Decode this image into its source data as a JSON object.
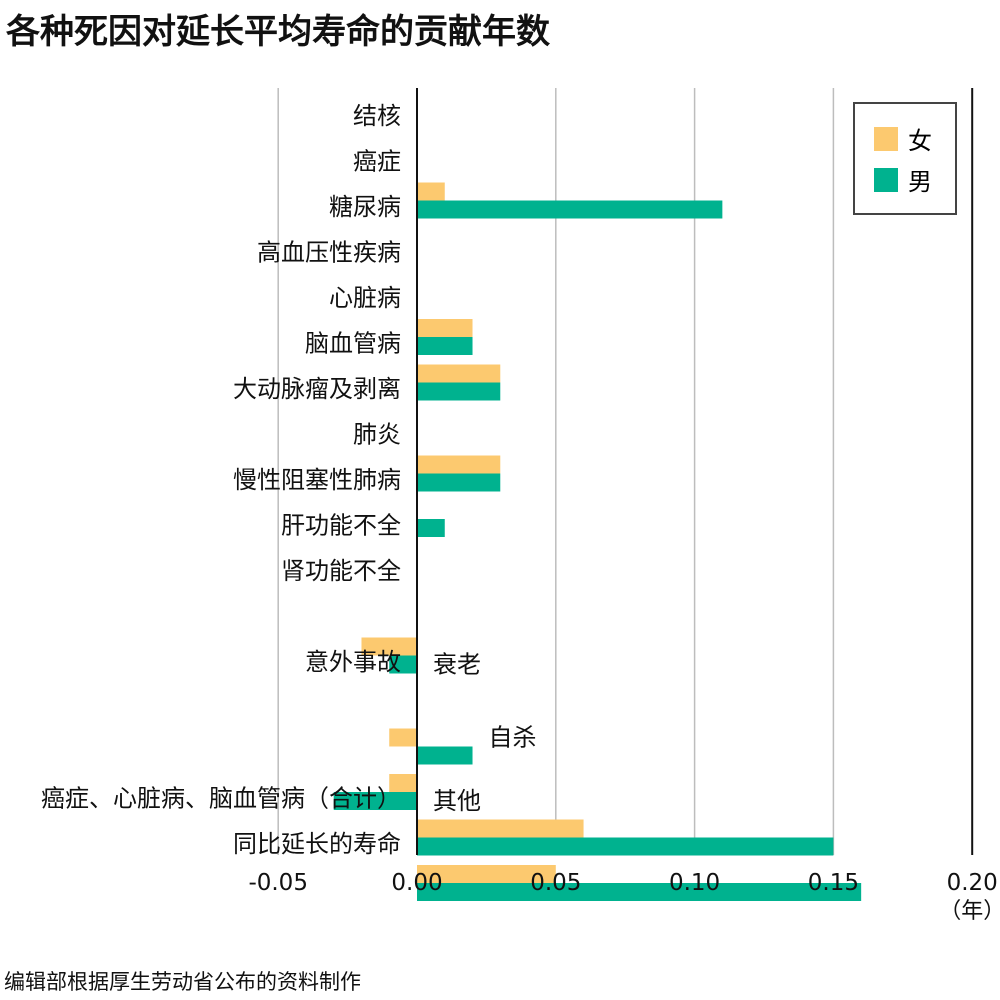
{
  "title": "各种死因对延长平均寿命的贡献年数",
  "source": "编辑部根据厚生劳动省公布的资料制作",
  "colors": {
    "female": "#FCC96F",
    "male": "#00B28F",
    "grid": "#BDBDBD",
    "axis": "#111111"
  },
  "chart_data": {
    "type": "bar",
    "orientation": "horizontal",
    "categories": [
      "结核",
      "癌症",
      "糖尿病",
      "高血压性疾病",
      "心脏病",
      "脑血管病",
      "大动脉瘤及剥离",
      "肺炎",
      "慢性阻塞性肺病",
      "肝功能不全",
      "肾功能不全",
      "衰老",
      "意外事故",
      "自杀",
      "其他",
      "癌症、心脏病、脑血管病（合计）",
      "同比延长的寿命"
    ],
    "series": [
      {
        "name": "女",
        "color": "#FCC96F",
        "values": [
          0,
          0.01,
          0,
          0,
          0.02,
          0.03,
          0,
          0.03,
          0,
          0,
          0,
          -0.02,
          0,
          -0.01,
          -0.01,
          0.06,
          0.05
        ]
      },
      {
        "name": "男",
        "color": "#00B28F",
        "values": [
          0,
          0.11,
          0,
          0,
          0.02,
          0.03,
          0,
          0.03,
          0.01,
          0,
          0,
          -0.01,
          0,
          0.02,
          -0.03,
          0.15,
          0.16
        ]
      }
    ],
    "xlim": [
      -0.05,
      0.2
    ],
    "xticks": [
      "-0.05",
      "0.00",
      "0.05",
      "0.10",
      "0.15",
      "0.20"
    ],
    "xunit": "（年）",
    "grid": true,
    "legend": "top-right"
  }
}
